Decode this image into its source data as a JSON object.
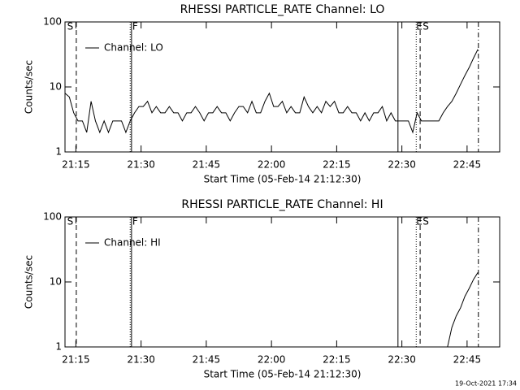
{
  "chart_data": [
    {
      "type": "line",
      "title": "RHESSI PARTICLE_RATE Channel: LO",
      "xlabel": "Start Time (05-Feb-14 21:12:30)",
      "ylabel": "Counts/sec",
      "x": [
        1272.5,
        1273.5,
        1274.5,
        1275.5,
        1276.5,
        1277.5,
        1278.5,
        1279.5,
        1280.5,
        1281.5,
        1282.5,
        1283.5,
        1284.5,
        1285.5,
        1286.5,
        1287.5,
        1288.5,
        1289.5,
        1290.5,
        1291.5,
        1292.5,
        1293.5,
        1294.5,
        1295.5,
        1296.5,
        1297.5,
        1298.5,
        1299.5,
        1300.5,
        1301.5,
        1302.5,
        1303.5,
        1304.5,
        1305.5,
        1306.5,
        1307.5,
        1308.5,
        1309.5,
        1310.5,
        1311.5,
        1312.5,
        1313.5,
        1314.5,
        1315.5,
        1316.5,
        1317.5,
        1318.5,
        1319.5,
        1320.5,
        1321.5,
        1322.5,
        1323.5,
        1324.5,
        1325.5,
        1326.5,
        1327.5,
        1328.5,
        1329.5,
        1330.5,
        1331.5,
        1332.5,
        1333.5,
        1334.5,
        1335.5,
        1336.5,
        1337.5,
        1338.5,
        1339.5,
        1340.5,
        1341.5,
        1342.5,
        1343.5,
        1344.5,
        1345.5,
        1346.5,
        1347.5,
        1348.5,
        1349.5,
        1350.5,
        1351.5,
        1352.5,
        1353.5,
        1354.5,
        1355.5,
        1356.5,
        1357.5,
        1358.5,
        1359.5,
        1360.5,
        1361.5,
        1362.5,
        1363.5,
        1364.5,
        1365.5,
        1366.5,
        1367.5
      ],
      "series": [
        {
          "name": "Channel: LO",
          "color": "#000000",
          "values": [
            8,
            7,
            4,
            3,
            3,
            2,
            6,
            3,
            2,
            3,
            2,
            3,
            3,
            3,
            2,
            3,
            4,
            5,
            5,
            6,
            4,
            5,
            4,
            4,
            5,
            4,
            4,
            3,
            4,
            4,
            5,
            4,
            3,
            4,
            4,
            5,
            4,
            4,
            3,
            4,
            5,
            5,
            4,
            6,
            4,
            4,
            6,
            8,
            5,
            5,
            6,
            4,
            5,
            4,
            4,
            7,
            5,
            4,
            5,
            4,
            6,
            5,
            6,
            4,
            4,
            5,
            4,
            4,
            3,
            4,
            3,
            4,
            4,
            5,
            3,
            4,
            3,
            3,
            3,
            3,
            2,
            4,
            3,
            3,
            3,
            3,
            3,
            4,
            5,
            6,
            8,
            11,
            15,
            20,
            28,
            38
          ]
        }
      ],
      "xlim": [
        1272.5,
        1372.5
      ],
      "ylim": [
        1,
        100
      ],
      "ylog": true,
      "xticks": [
        {
          "value": 1275,
          "label": "21:15"
        },
        {
          "value": 1290,
          "label": "21:30"
        },
        {
          "value": 1305,
          "label": "21:45"
        },
        {
          "value": 1320,
          "label": "22:00"
        },
        {
          "value": 1335,
          "label": "22:15"
        },
        {
          "value": 1350,
          "label": "22:30"
        },
        {
          "value": 1365,
          "label": "22:45"
        }
      ],
      "yticks": [
        1,
        10,
        100
      ],
      "legend": "upper left",
      "markers": [
        {
          "x": 1275.1,
          "style": "dashed"
        },
        {
          "x": 1287.5,
          "style": "dotted"
        },
        {
          "x": 1287.8,
          "style": "solid"
        },
        {
          "x": 1349.1,
          "style": "solid"
        },
        {
          "x": 1353.3,
          "style": "dotted"
        },
        {
          "x": 1354.2,
          "style": "dashed"
        },
        {
          "x": 1367.6,
          "style": "dashdot"
        }
      ],
      "marker_labels": [
        {
          "x": 1273,
          "label": "S"
        },
        {
          "x": 1288,
          "label": "F"
        },
        {
          "x": 1353.3,
          "label": "E"
        },
        {
          "x": 1354.8,
          "label": "S"
        }
      ]
    },
    {
      "type": "line",
      "title": "RHESSI PARTICLE_RATE Channel: HI",
      "xlabel": "Start Time (05-Feb-14 21:12:30)",
      "ylabel": "Counts/sec",
      "x": [
        1272.5,
        1273.5,
        1274.5,
        1275.5,
        1276.5,
        1277.5,
        1278.5,
        1279.5,
        1280.5,
        1281.5,
        1282.5,
        1283.5,
        1284.5,
        1285.5,
        1286.5,
        1287.5,
        1288.5,
        1289.5,
        1290.5,
        1291.5,
        1292.5,
        1293.5,
        1294.5,
        1295.5,
        1296.5,
        1297.5,
        1298.5,
        1299.5,
        1300.5,
        1301.5,
        1302.5,
        1303.5,
        1304.5,
        1305.5,
        1306.5,
        1307.5,
        1308.5,
        1309.5,
        1310.5,
        1311.5,
        1312.5,
        1313.5,
        1314.5,
        1315.5,
        1316.5,
        1317.5,
        1318.5,
        1319.5,
        1320.5,
        1321.5,
        1322.5,
        1323.5,
        1324.5,
        1325.5,
        1326.5,
        1327.5,
        1328.5,
        1329.5,
        1330.5,
        1331.5,
        1332.5,
        1333.5,
        1334.5,
        1335.5,
        1336.5,
        1337.5,
        1338.5,
        1339.5,
        1340.5,
        1341.5,
        1342.5,
        1343.5,
        1344.5,
        1345.5,
        1346.5,
        1347.5,
        1348.5,
        1349.5,
        1350.5,
        1351.5,
        1352.5,
        1353.5,
        1354.5,
        1355.5,
        1356.5,
        1357.5,
        1358.5,
        1359.5,
        1360.5,
        1361.5,
        1362.5,
        1363.5,
        1364.5,
        1365.5,
        1366.5,
        1367.5
      ],
      "series": [
        {
          "name": "Channel: HI",
          "color": "#000000",
          "values": [
            null,
            null,
            null,
            null,
            null,
            null,
            null,
            null,
            null,
            null,
            null,
            null,
            null,
            null,
            null,
            null,
            null,
            null,
            null,
            null,
            null,
            null,
            null,
            null,
            null,
            null,
            null,
            null,
            null,
            null,
            null,
            null,
            null,
            null,
            null,
            null,
            null,
            null,
            null,
            null,
            null,
            null,
            null,
            null,
            null,
            null,
            null,
            null,
            null,
            null,
            null,
            null,
            null,
            null,
            null,
            null,
            null,
            null,
            null,
            null,
            null,
            null,
            null,
            null,
            null,
            null,
            null,
            null,
            null,
            null,
            null,
            null,
            null,
            null,
            null,
            null,
            null,
            null,
            null,
            null,
            null,
            null,
            null,
            null,
            null,
            null,
            null,
            1,
            1,
            2,
            3,
            4,
            6,
            8,
            11,
            14
          ]
        }
      ],
      "xlim": [
        1272.5,
        1372.5
      ],
      "ylim": [
        1,
        100
      ],
      "ylog": true,
      "xticks": [
        {
          "value": 1275,
          "label": "21:15"
        },
        {
          "value": 1290,
          "label": "21:30"
        },
        {
          "value": 1305,
          "label": "21:45"
        },
        {
          "value": 1320,
          "label": "22:00"
        },
        {
          "value": 1335,
          "label": "22:15"
        },
        {
          "value": 1350,
          "label": "22:30"
        },
        {
          "value": 1365,
          "label": "22:45"
        }
      ],
      "yticks": [
        1,
        10,
        100
      ],
      "legend": "upper left",
      "markers": [
        {
          "x": 1275.1,
          "style": "dashed"
        },
        {
          "x": 1287.5,
          "style": "dotted"
        },
        {
          "x": 1287.8,
          "style": "solid"
        },
        {
          "x": 1349.1,
          "style": "solid"
        },
        {
          "x": 1353.3,
          "style": "dotted"
        },
        {
          "x": 1354.2,
          "style": "dashed"
        },
        {
          "x": 1367.6,
          "style": "dashdot"
        }
      ],
      "marker_labels": [
        {
          "x": 1273,
          "label": "S"
        },
        {
          "x": 1288,
          "label": "F"
        },
        {
          "x": 1353.3,
          "label": "E"
        },
        {
          "x": 1354.8,
          "label": "S"
        }
      ]
    }
  ],
  "footer": "19-Oct-2021 17:34"
}
